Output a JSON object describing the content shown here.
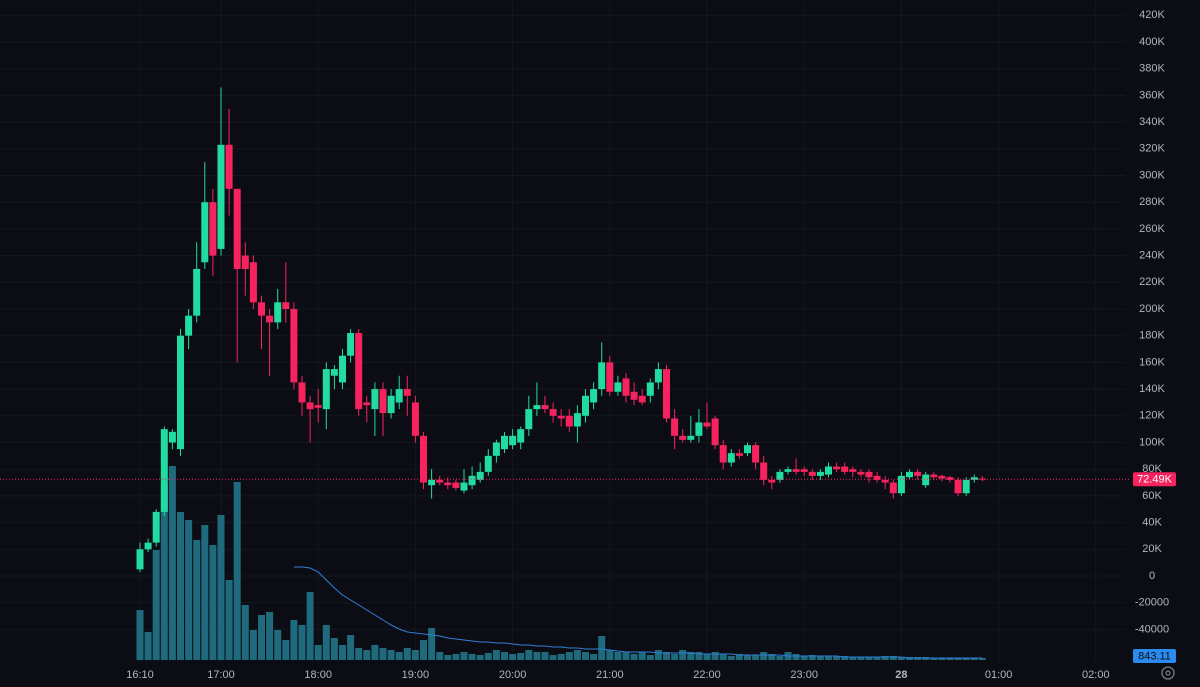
{
  "chart_data": {
    "type": "candlestick",
    "up_color": "#22dba0",
    "down_color": "#f7235f",
    "volume_color": "#1f6a7c",
    "volume_ma_color": "#2f7fd8",
    "open": [
      5000,
      20000,
      25000,
      48000,
      100000,
      95000,
      180000,
      195000,
      235000,
      280000,
      245000,
      323000,
      290000,
      240000,
      235000,
      205000,
      195000,
      190000,
      205000,
      200000,
      145000,
      130000,
      128000,
      125000,
      150000,
      145000,
      165000,
      182000,
      130000,
      125000,
      140000,
      122000,
      130000,
      140000,
      130000,
      105000,
      68000,
      72000,
      70000,
      70000,
      64000,
      68000,
      72000,
      78000,
      90000,
      95000,
      98000,
      100000,
      110000,
      125000,
      128000,
      125000,
      120000,
      120000,
      112000,
      120000,
      130000,
      140000,
      160000,
      138000,
      148000,
      138000,
      135000,
      135000,
      145000,
      155000,
      118000,
      105000,
      102000,
      105000,
      115000,
      118000,
      98000,
      85000,
      92000,
      92000,
      98000,
      85000,
      72000,
      72000,
      78000,
      80000,
      80000,
      78000,
      75000,
      76000,
      82000,
      82000,
      80000,
      78000,
      78000,
      75000,
      72000,
      70000,
      62000,
      74000,
      78000,
      68000,
      76000,
      75000,
      74000,
      72000,
      62000,
      72000,
      73000
    ],
    "high": [
      25000,
      28000,
      50000,
      112000,
      110000,
      185000,
      200000,
      250000,
      310000,
      290000,
      366000,
      350000,
      290000,
      250000,
      240000,
      210000,
      200000,
      215000,
      235000,
      205000,
      150000,
      135000,
      140000,
      160000,
      158000,
      170000,
      185000,
      185000,
      135000,
      145000,
      145000,
      140000,
      150000,
      150000,
      135000,
      108000,
      80000,
      75000,
      74000,
      72000,
      80000,
      82000,
      85000,
      95000,
      102000,
      108000,
      110000,
      112000,
      135000,
      145000,
      135000,
      130000,
      125000,
      125000,
      128000,
      140000,
      145000,
      175000,
      165000,
      150000,
      152000,
      145000,
      140000,
      148000,
      160000,
      158000,
      125000,
      110000,
      120000,
      125000,
      130000,
      120000,
      102000,
      95000,
      95000,
      100000,
      100000,
      90000,
      75000,
      80000,
      82000,
      88000,
      82000,
      80000,
      80000,
      85000,
      85000,
      85000,
      82000,
      80000,
      80000,
      78000,
      75000,
      72000,
      78000,
      80000,
      80000,
      78000,
      78000,
      76000,
      75000,
      74000,
      74000,
      76000,
      75000
    ],
    "low": [
      3000,
      18000,
      22000,
      45000,
      95000,
      90000,
      170000,
      190000,
      230000,
      225000,
      240000,
      270000,
      160000,
      210000,
      200000,
      170000,
      150000,
      185000,
      190000,
      140000,
      120000,
      100000,
      115000,
      110000,
      140000,
      140000,
      160000,
      120000,
      115000,
      105000,
      105000,
      118000,
      125000,
      120000,
      100000,
      65000,
      58000,
      68000,
      65000,
      64000,
      62000,
      65000,
      70000,
      75000,
      85000,
      92000,
      95000,
      95000,
      105000,
      120000,
      122000,
      115000,
      112000,
      108000,
      100000,
      115000,
      125000,
      135000,
      135000,
      135000,
      130000,
      128000,
      128000,
      130000,
      140000,
      115000,
      95000,
      100000,
      100000,
      100000,
      110000,
      95000,
      80000,
      82000,
      88000,
      90000,
      80000,
      68000,
      65000,
      70000,
      76000,
      76000,
      75000,
      72000,
      72000,
      74000,
      78000,
      76000,
      74000,
      74000,
      70000,
      70000,
      65000,
      58000,
      60000,
      72000,
      72000,
      66000,
      72000,
      71000,
      70000,
      60000,
      60000,
      70000,
      71000
    ],
    "close": [
      20000,
      25000,
      48000,
      110000,
      108000,
      180000,
      195000,
      230000,
      280000,
      240000,
      323000,
      290000,
      230000,
      230000,
      205000,
      195000,
      190000,
      205000,
      200000,
      145000,
      130000,
      125000,
      126000,
      155000,
      155000,
      165000,
      182000,
      125000,
      128000,
      140000,
      122000,
      135000,
      140000,
      135000,
      105000,
      70000,
      72000,
      70000,
      68000,
      66000,
      70000,
      75000,
      78000,
      90000,
      100000,
      105000,
      105000,
      110000,
      125000,
      128000,
      125000,
      120000,
      118000,
      112000,
      122000,
      135000,
      140000,
      160000,
      138000,
      145000,
      135000,
      132000,
      130000,
      145000,
      155000,
      118000,
      105000,
      102000,
      105000,
      115000,
      112000,
      98000,
      85000,
      92000,
      90000,
      98000,
      85000,
      72000,
      70000,
      78000,
      80000,
      78000,
      78000,
      75000,
      78000,
      82000,
      80000,
      78000,
      78000,
      76000,
      74000,
      72000,
      70000,
      62000,
      75000,
      78000,
      75000,
      76000,
      74000,
      73000,
      72000,
      62000,
      72000,
      74000,
      72490
    ],
    "volume": [
      50,
      28,
      110,
      175,
      194,
      148,
      140,
      120,
      135,
      115,
      145,
      80,
      178,
      55,
      30,
      45,
      48,
      30,
      20,
      40,
      35,
      68,
      15,
      35,
      22,
      15,
      25,
      12,
      10,
      15,
      12,
      10,
      8,
      12,
      10,
      20,
      32,
      8,
      5,
      6,
      8,
      6,
      5,
      7,
      10,
      8,
      6,
      7,
      10,
      8,
      8,
      5,
      6,
      8,
      10,
      8,
      6,
      24,
      10,
      8,
      8,
      6,
      8,
      5,
      10,
      8,
      6,
      10,
      8,
      8,
      6,
      8,
      6,
      4,
      6,
      5,
      5,
      8,
      6,
      4,
      8,
      6,
      4,
      5,
      4,
      4,
      4,
      4,
      3,
      3,
      3,
      3,
      4,
      4,
      3,
      3,
      3,
      3,
      2,
      2,
      2,
      2,
      2,
      2,
      2
    ],
    "volume_ma": [
      null,
      null,
      null,
      null,
      null,
      null,
      null,
      null,
      null,
      null,
      null,
      null,
      null,
      null,
      null,
      null,
      null,
      null,
      null,
      93,
      93,
      92,
      88,
      80,
      72,
      65,
      60,
      55,
      50,
      45,
      40,
      35,
      31,
      28,
      27,
      26,
      25,
      24,
      22,
      21,
      20,
      19,
      18,
      18,
      17,
      17,
      16,
      15,
      15,
      14,
      14,
      13,
      13,
      12,
      12,
      11,
      11,
      11,
      10,
      9,
      8,
      8,
      8,
      8,
      7,
      7,
      7,
      7,
      7,
      6,
      6,
      6,
      6,
      6,
      5,
      5,
      5,
      5,
      5,
      5,
      4,
      4,
      4,
      4,
      4,
      4,
      4,
      3,
      3,
      3,
      3,
      3,
      3,
      3,
      3,
      2,
      2,
      2,
      2,
      2,
      2,
      2,
      2,
      2,
      2
    ],
    "volume_lim": [
      0,
      200
    ],
    "xlim": [
      -1,
      123
    ],
    "xticks": [
      {
        "value": 0,
        "label": "16:10"
      },
      {
        "value": 10,
        "label": "17:00"
      },
      {
        "value": 22,
        "label": "18:00"
      },
      {
        "value": 34,
        "label": "19:00"
      },
      {
        "value": 46,
        "label": "20:00"
      },
      {
        "value": 58,
        "label": "21:00"
      },
      {
        "value": 70,
        "label": "22:00"
      },
      {
        "value": 82,
        "label": "23:00"
      },
      {
        "value": 94,
        "label": "28"
      },
      {
        "value": 106,
        "label": "01:00"
      },
      {
        "value": 118,
        "label": "02:00"
      }
    ],
    "ylim": [
      -52000,
      432000
    ],
    "yticks": [
      {
        "value": 420000,
        "label": "420K"
      },
      {
        "value": 400000,
        "label": "400K"
      },
      {
        "value": 380000,
        "label": "380K"
      },
      {
        "value": 360000,
        "label": "360K"
      },
      {
        "value": 340000,
        "label": "340K"
      },
      {
        "value": 320000,
        "label": "320K"
      },
      {
        "value": 300000,
        "label": "300K"
      },
      {
        "value": 280000,
        "label": "280K"
      },
      {
        "value": 260000,
        "label": "260K"
      },
      {
        "value": 240000,
        "label": "240K"
      },
      {
        "value": 220000,
        "label": "220K"
      },
      {
        "value": 200000,
        "label": "200K"
      },
      {
        "value": 180000,
        "label": "180K"
      },
      {
        "value": 160000,
        "label": "160K"
      },
      {
        "value": 140000,
        "label": "140K"
      },
      {
        "value": 120000,
        "label": "120K"
      },
      {
        "value": 100000,
        "label": "100K"
      },
      {
        "value": 80000,
        "label": "80K"
      },
      {
        "value": 60000,
        "label": "60K"
      },
      {
        "value": 40000,
        "label": "40K"
      },
      {
        "value": 20000,
        "label": "20K"
      },
      0,
      -20000,
      -40000
    ],
    "grid": true,
    "last_price": 72490,
    "last_price_label": "72.49K",
    "volume_ma_label": "843.11"
  }
}
